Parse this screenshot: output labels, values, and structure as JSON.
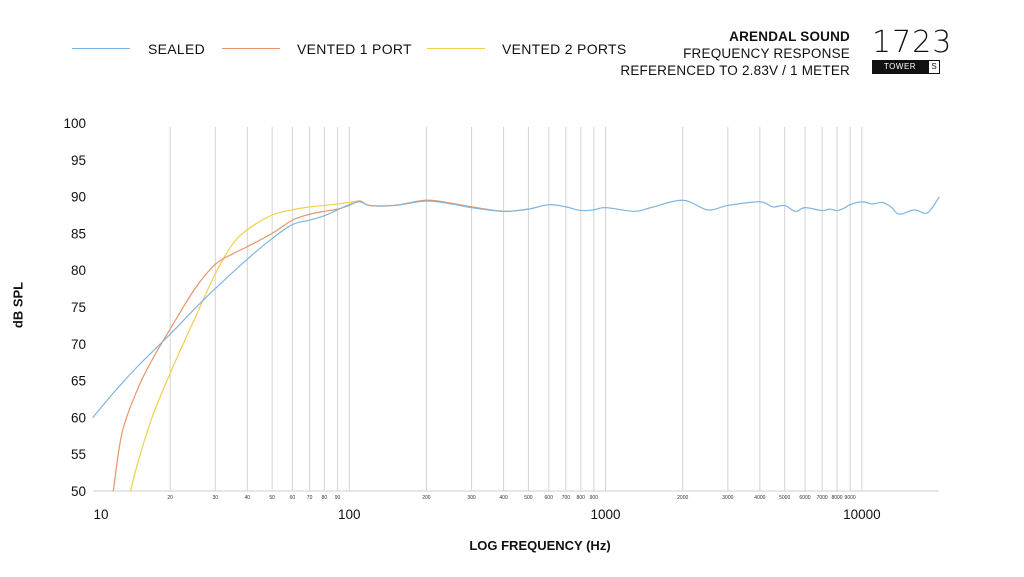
{
  "legend": [
    {
      "name": "SEALED",
      "color": "#7fb5e0"
    },
    {
      "name": "VENTED 1 PORT",
      "color": "#e8956a"
    },
    {
      "name": "VENTED 2 PORTS",
      "color": "#f2cf4a"
    }
  ],
  "brand": {
    "title": "ARENDAL SOUND",
    "line1": "FREQUENCY RESPONSE",
    "line2": "REFERENCED TO 2.83V / 1 METER"
  },
  "model": {
    "number": "1723",
    "tag": "TOWER",
    "variant": "S"
  },
  "chart_data": {
    "type": "line",
    "xlabel": "LOG FREQUENCY (Hz)",
    "ylabel": "dB SPL",
    "xscale": "log",
    "xlim": [
      10,
      20000
    ],
    "ylim": [
      50,
      100
    ],
    "yticks": [
      50,
      55,
      60,
      65,
      70,
      75,
      80,
      85,
      90,
      95,
      100
    ],
    "xticks_major": [
      10,
      100,
      1000,
      10000
    ],
    "xticks_minor": [
      20,
      30,
      40,
      50,
      60,
      70,
      80,
      90,
      200,
      300,
      400,
      500,
      600,
      700,
      800,
      900,
      2000,
      3000,
      4000,
      5000,
      6000,
      7000,
      8000,
      9000
    ],
    "grid": "vertical",
    "legend_position": "top-left",
    "series": [
      {
        "name": "SEALED",
        "color": "#7fb5e0",
        "x": [
          10,
          12,
          15,
          20,
          25,
          30,
          40,
          50,
          60,
          70,
          80,
          90,
          100,
          110,
          120,
          150,
          200,
          250,
          300,
          400,
          500,
          600,
          700,
          800,
          900,
          1000,
          1300,
          1500,
          2000,
          2500,
          3000,
          4000,
          4500,
          5000,
          5500,
          6000,
          7000,
          7500,
          8000,
          8500,
          9000,
          10000,
          11000,
          12000,
          13000,
          14000,
          16000,
          18000,
          20000
        ],
        "y": [
          60.0,
          63.3,
          67.0,
          71.3,
          74.8,
          77.5,
          81.5,
          84.3,
          86.2,
          86.8,
          87.4,
          88.2,
          88.9,
          89.3,
          88.8,
          88.8,
          89.4,
          89.0,
          88.5,
          88.0,
          88.3,
          88.9,
          88.6,
          88.1,
          88.2,
          88.5,
          88.0,
          88.5,
          89.5,
          88.2,
          88.8,
          89.3,
          88.6,
          88.8,
          88.0,
          88.5,
          88.1,
          88.3,
          88.1,
          88.4,
          88.9,
          89.3,
          89.0,
          89.2,
          88.6,
          87.6,
          88.2,
          87.8,
          89.9
        ]
      },
      {
        "name": "VENTED 1 PORT",
        "color": "#e8956a",
        "x": [
          12,
          13,
          15,
          17,
          20,
          25,
          30,
          35,
          40,
          50,
          60,
          70,
          80,
          90,
          100,
          110,
          120,
          150,
          200,
          250,
          300,
          400,
          500
        ],
        "y": [
          50.0,
          58.0,
          64.0,
          67.8,
          72.0,
          77.5,
          80.8,
          82.2,
          83.2,
          85.0,
          86.8,
          87.6,
          88.0,
          88.3,
          88.8,
          89.4,
          88.8,
          88.8,
          89.5,
          89.1,
          88.6,
          88.0,
          88.3
        ]
      },
      {
        "name": "VENTED 2 PORTS",
        "color": "#f2cf4a",
        "x": [
          14,
          15,
          17,
          20,
          25,
          30,
          35,
          40,
          50,
          60,
          70,
          80,
          90,
          100,
          110,
          120,
          150,
          200,
          250,
          300,
          400,
          500
        ],
        "y": [
          50.0,
          54.0,
          60.0,
          66.0,
          73.5,
          79.5,
          83.5,
          85.5,
          87.5,
          88.2,
          88.6,
          88.8,
          89.0,
          89.2,
          89.4,
          88.8,
          88.8,
          89.5,
          89.1,
          88.6,
          88.0,
          88.3
        ]
      }
    ]
  }
}
